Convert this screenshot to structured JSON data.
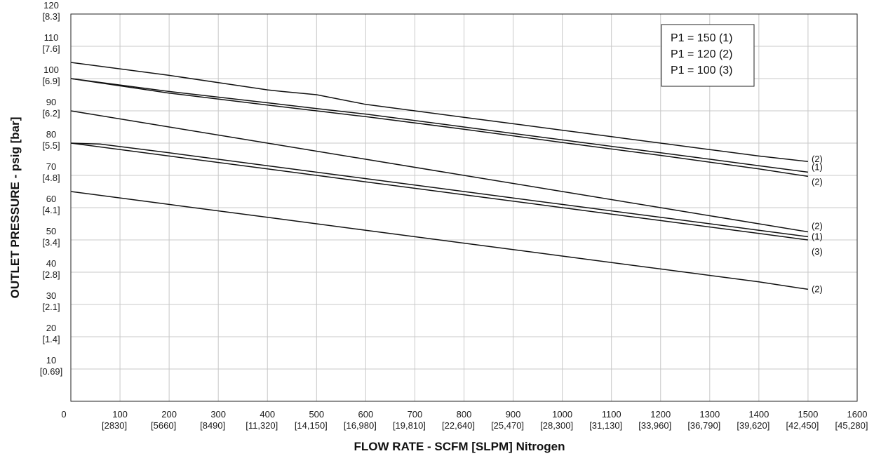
{
  "chart_data": {
    "type": "line",
    "xlabel": "FLOW RATE - SCFM [SLPM] Nitrogen",
    "ylabel": "OUTLET PRESSURE - psig [bar]",
    "xlim": [
      0,
      1600
    ],
    "ylim": [
      0,
      120
    ],
    "grid": true,
    "x_ticks": [
      {
        "value": 0,
        "label": "0",
        "sub": ""
      },
      {
        "value": 100,
        "label": "100",
        "sub": "[2830]"
      },
      {
        "value": 200,
        "label": "200",
        "sub": "[5660]"
      },
      {
        "value": 300,
        "label": "300",
        "sub": "[8490]"
      },
      {
        "value": 400,
        "label": "400",
        "sub": "[11,320]"
      },
      {
        "value": 500,
        "label": "500",
        "sub": "[14,150]"
      },
      {
        "value": 600,
        "label": "600",
        "sub": "[16,980]"
      },
      {
        "value": 700,
        "label": "700",
        "sub": "[19,810]"
      },
      {
        "value": 800,
        "label": "800",
        "sub": "[22,640]"
      },
      {
        "value": 900,
        "label": "900",
        "sub": "[25,470]"
      },
      {
        "value": 1000,
        "label": "1000",
        "sub": "[28,300]"
      },
      {
        "value": 1100,
        "label": "1100",
        "sub": "[31,130]"
      },
      {
        "value": 1200,
        "label": "1200",
        "sub": "[33,960]"
      },
      {
        "value": 1300,
        "label": "1300",
        "sub": "[36,790]"
      },
      {
        "value": 1400,
        "label": "1400",
        "sub": "[39,620]"
      },
      {
        "value": 1500,
        "label": "1500",
        "sub": "[42,450]"
      },
      {
        "value": 1600,
        "label": "1600",
        "sub": "[45,280]"
      }
    ],
    "y_ticks": [
      {
        "value": 10,
        "label": "10",
        "sub": "[0.69]"
      },
      {
        "value": 20,
        "label": "20",
        "sub": "[1.4]"
      },
      {
        "value": 30,
        "label": "30",
        "sub": "[2.1]"
      },
      {
        "value": 40,
        "label": "40",
        "sub": "[2.8]"
      },
      {
        "value": 50,
        "label": "50",
        "sub": "[3.4]"
      },
      {
        "value": 60,
        "label": "60",
        "sub": "[4.1]"
      },
      {
        "value": 70,
        "label": "70",
        "sub": "[4.8]"
      },
      {
        "value": 80,
        "label": "80",
        "sub": "[5.5]"
      },
      {
        "value": 90,
        "label": "90",
        "sub": "[6.2]"
      },
      {
        "value": 100,
        "label": "100",
        "sub": "[6.9]"
      },
      {
        "value": 110,
        "label": "110",
        "sub": "[7.6]"
      },
      {
        "value": 120,
        "label": "120",
        "sub": "[8.3]"
      }
    ],
    "legend": {
      "placement": "top-right",
      "entries": [
        "P1 = 150 (1)",
        "P1 = 120 (2)",
        "P1 = 100 (3)"
      ]
    },
    "series": [
      {
        "label": "(2)",
        "x": [
          0,
          200,
          400,
          430,
          500,
          600,
          700,
          800,
          900,
          1000,
          1100,
          1200,
          1300,
          1400,
          1500
        ],
        "y": [
          105,
          101,
          96.5,
          96,
          95,
          92,
          90,
          88,
          86,
          84,
          82,
          80,
          78,
          76,
          74.3
        ]
      },
      {
        "label": "(1)",
        "x": [
          0,
          200,
          400,
          500,
          600,
          800,
          1000,
          1200,
          1400,
          1500
        ],
        "y": [
          100,
          96,
          92.5,
          90.7,
          89,
          85,
          81,
          77,
          73,
          71
        ]
      },
      {
        "label": "(2)",
        "x": [
          0,
          200,
          400,
          500,
          600,
          800,
          1000,
          1200,
          1400,
          1500
        ],
        "y": [
          100,
          95.5,
          91.8,
          90,
          88.2,
          84.3,
          80.2,
          76.2,
          72,
          69.7
        ]
      },
      {
        "label": "(2)",
        "x": [
          0,
          200,
          400,
          600,
          800,
          1000,
          1200,
          1400,
          1500
        ],
        "y": [
          90,
          85,
          80,
          75,
          70,
          65,
          60,
          55,
          52.5
        ]
      },
      {
        "label": "(1)",
        "x": [
          0,
          60,
          200,
          400,
          600,
          800,
          1000,
          1200,
          1400,
          1500
        ],
        "y": [
          80,
          79.7,
          77,
          73,
          69,
          65,
          61,
          57,
          53,
          51
        ]
      },
      {
        "label": "(3)",
        "x": [
          0,
          200,
          400,
          600,
          800,
          1000,
          1200,
          1400,
          1500
        ],
        "y": [
          80,
          76,
          72,
          68,
          64,
          60,
          56,
          52,
          50
        ]
      },
      {
        "label": "(2)",
        "x": [
          0,
          200,
          400,
          600,
          800,
          1000,
          1200,
          1400,
          1500
        ],
        "y": [
          65,
          61,
          57,
          53,
          49,
          45,
          41,
          37,
          34.7
        ]
      }
    ]
  }
}
